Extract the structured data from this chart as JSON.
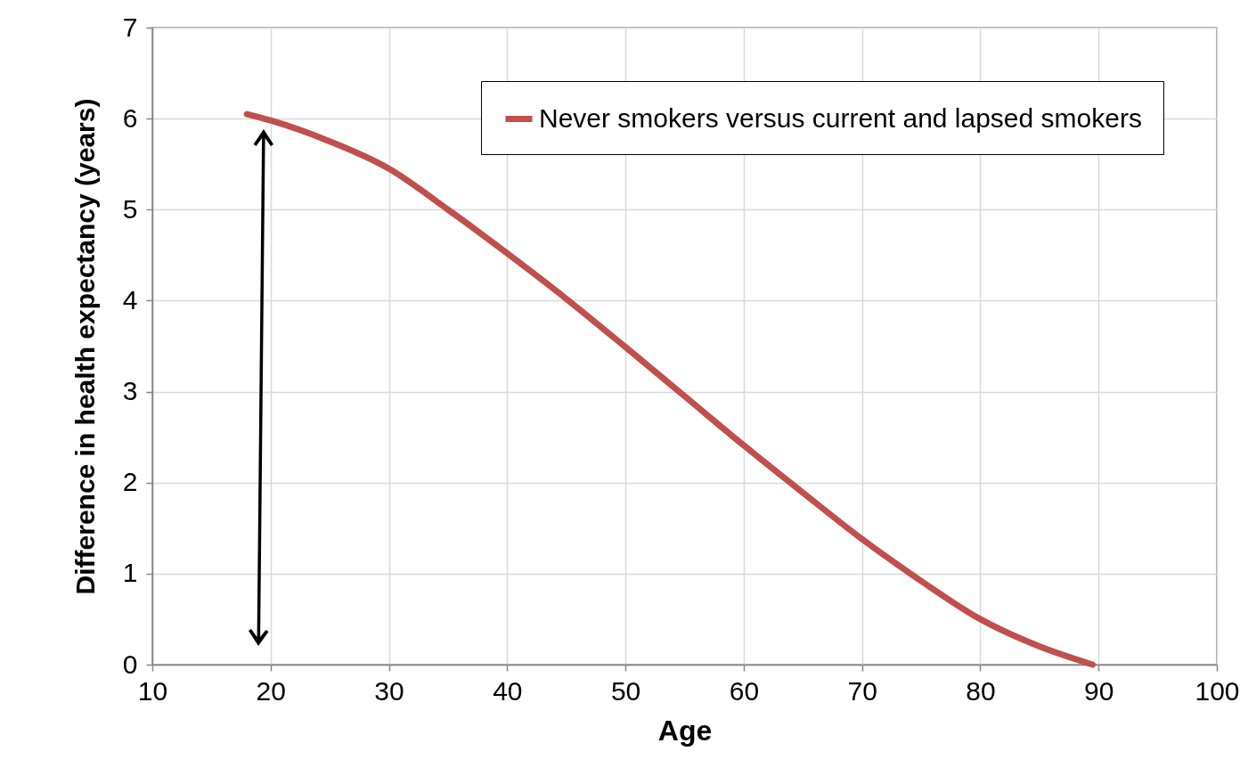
{
  "chart_data": {
    "type": "line",
    "xlabel": "Age",
    "ylabel": "Difference in health expectancy (years)",
    "series": [
      {
        "name": "Never smokers versus current and lapsed smokers",
        "color": "#c0504d",
        "x": [
          18,
          20,
          25,
          30,
          35,
          40,
          45,
          50,
          55,
          60,
          65,
          70,
          75,
          80,
          85,
          89.5
        ],
        "values": [
          6.05,
          5.98,
          5.75,
          5.45,
          5.0,
          4.52,
          4.02,
          3.49,
          2.95,
          2.41,
          1.89,
          1.38,
          0.92,
          0.5,
          0.2,
          0
        ]
      }
    ],
    "xlim": [
      10,
      100
    ],
    "xticks": [
      10,
      20,
      30,
      40,
      50,
      60,
      70,
      80,
      90,
      100
    ],
    "ylim": [
      0,
      7
    ],
    "yticks": [
      0,
      1,
      2,
      3,
      4,
      5,
      6,
      7
    ],
    "grid": true,
    "legend": "top right",
    "marker": "none",
    "line_style": "solid"
  }
}
